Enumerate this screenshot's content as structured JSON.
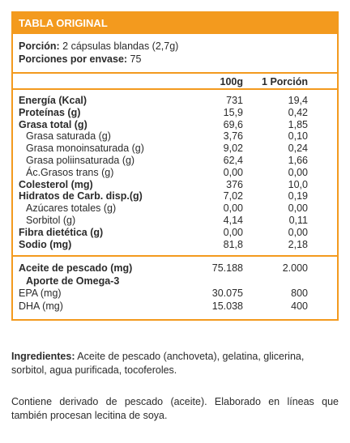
{
  "header": {
    "title": "TABLA ORIGINAL"
  },
  "portion": {
    "label": "Porción:",
    "value": " 2 cápsulas blandas (2,7g)",
    "per_pack_label": "Porciones por envase:",
    "per_pack_value": " 75"
  },
  "columns": {
    "col1": "100g",
    "col2": "1 Porción"
  },
  "rows": [
    {
      "name": "Energía (Kcal)",
      "v1": "731",
      "v2": "19,4"
    },
    {
      "name": "Proteínas (g)",
      "v1": "15,9",
      "v2": "0,42"
    },
    {
      "name": "Grasa total (g)",
      "v1": "69,6",
      "v2": "1,85"
    },
    {
      "name": "Grasa saturada (g)",
      "v1": "3,76",
      "v2": "0,10"
    },
    {
      "name": "Grasa monoinsaturada (g)",
      "v1": "9,02",
      "v2": "0,24"
    },
    {
      "name": "Grasa poliinsaturada (g)",
      "v1": "62,4",
      "v2": "1,66"
    },
    {
      "name": "Ác.Grasos trans (g)",
      "v1": "0,00",
      "v2": "0,00"
    },
    {
      "name": "Colesterol (mg)",
      "v1": "376",
      "v2": "10,0"
    },
    {
      "name": "Hidratos de Carb. disp.(g)",
      "v1": "7,02",
      "v2": "0,19"
    },
    {
      "name": "Azúcares totales (g)",
      "v1": "0,00",
      "v2": "0,00"
    },
    {
      "name": "Sorbitol (g)",
      "v1": "4,14",
      "v2": "0,11"
    },
    {
      "name": "Fibra dietética (g)",
      "v1": "0,00",
      "v2": "0,00"
    },
    {
      "name": "Sodio (mg)",
      "v1": "81,8",
      "v2": "2,18"
    }
  ],
  "oil": {
    "name": "Aceite de pescado (mg)",
    "v1": "75.188",
    "v2": "2.000",
    "omega_label": "Aporte de Omega-3",
    "epa": {
      "name": "EPA (mg)",
      "v1": "30.075",
      "v2": "800"
    },
    "dha": {
      "name": "DHA (mg)",
      "v1": "15.038",
      "v2": "400"
    }
  },
  "ingredients": {
    "label": "Ingredientes:",
    "text": " Aceite de pescado (anchoveta), gelatina, glicerina, sorbitol, agua purificada, tocoferoles."
  },
  "note": "Contiene derivado de pescado (aceite). Elaborado en líneas que también procesan lecitina de soya."
}
